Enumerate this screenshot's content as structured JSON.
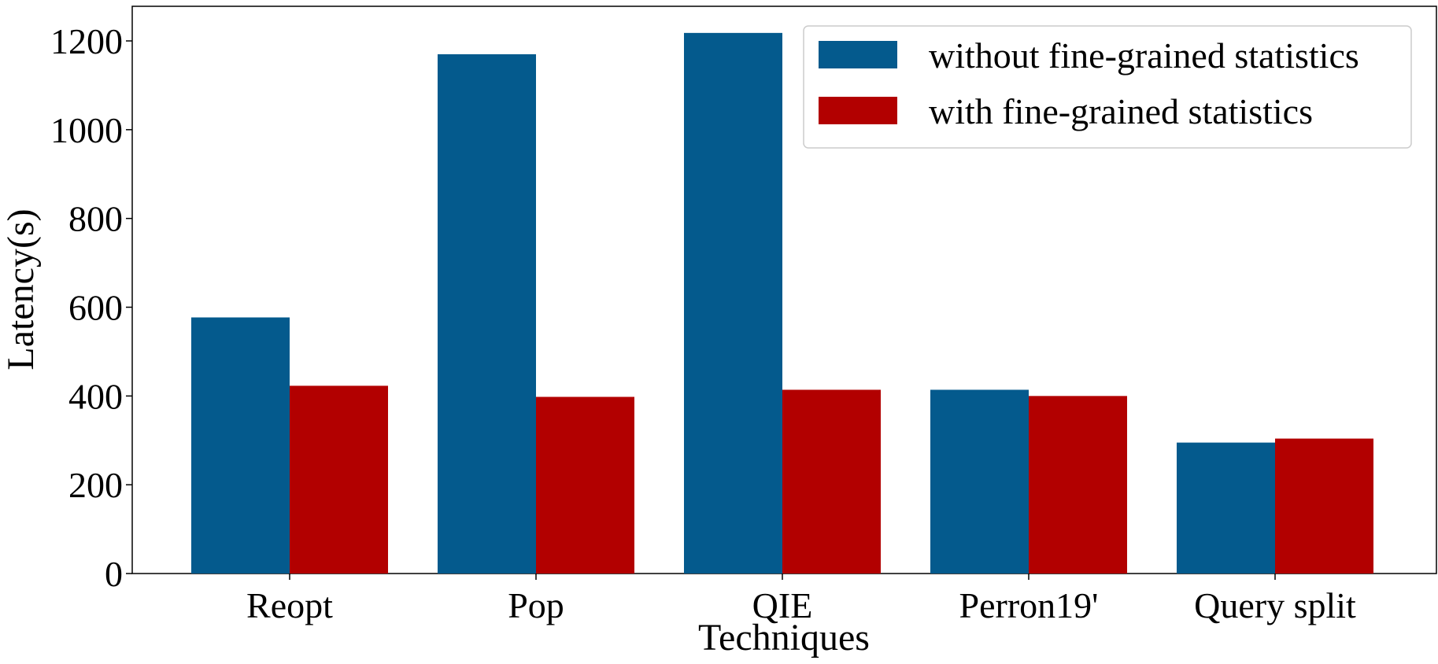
{
  "chart_data": {
    "type": "bar",
    "title": "",
    "xlabel": "Techniques",
    "ylabel": "Latency(s)",
    "categories": [
      "Reopt",
      "Pop",
      "QIE",
      "Perron19'",
      "Query split"
    ],
    "series": [
      {
        "name": "without fine-grained statistics",
        "color": "#045a8d",
        "values": [
          577,
          1170,
          1218,
          414,
          295
        ]
      },
      {
        "name": "with fine-grained statistics",
        "color": "#b20000",
        "values": [
          423,
          398,
          414,
          400,
          304
        ]
      }
    ],
    "yticks": [
      0,
      200,
      400,
      600,
      800,
      1000,
      1200
    ],
    "ylim": [
      0,
      1278
    ],
    "grid": false,
    "legend_position": "top-right"
  }
}
